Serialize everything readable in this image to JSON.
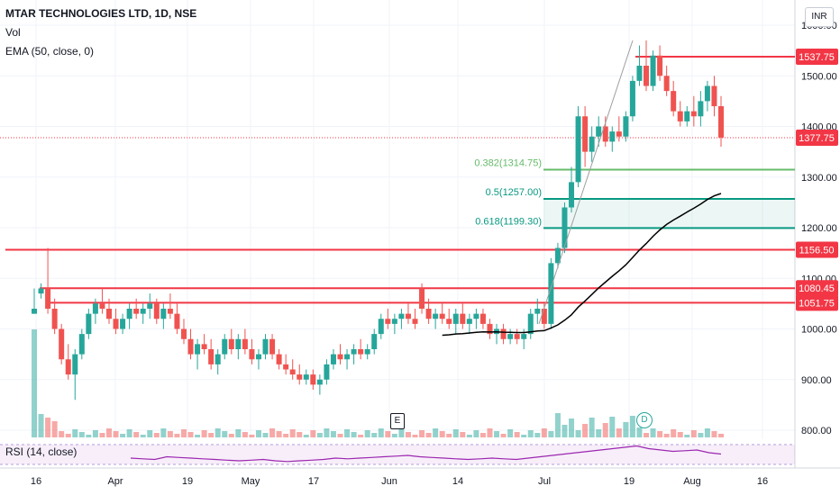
{
  "header": {
    "title": "MTAR TECHNOLOGIES LTD, 1D, NSE",
    "vol_label": "Vol",
    "ema_label": "EMA (50, close, 0)",
    "currency_button": "INR"
  },
  "rsi": {
    "label": "RSI (14, close)",
    "values": [
      62,
      61,
      60,
      64,
      63,
      62,
      61,
      60,
      59,
      58,
      59,
      60,
      58,
      57,
      58,
      59,
      60,
      62,
      61,
      62,
      63,
      64,
      65,
      66,
      64,
      63,
      62,
      61,
      60,
      61,
      62,
      61,
      60,
      62,
      64,
      66,
      68,
      70,
      72,
      74,
      76,
      78,
      80,
      76,
      74,
      72,
      73,
      74,
      70,
      68
    ]
  },
  "events": {
    "earnings_label": "E",
    "dividend_label": "D"
  },
  "colors": {
    "up": "#26a69a",
    "down": "#ef5350",
    "ema": "#000000",
    "level": "#f23645",
    "fib_light": "#66bb6a",
    "fib_dark": "#089981",
    "rsi": "#9c27b0"
  },
  "chart_data": {
    "type": "candlestick",
    "title": "MTAR TECHNOLOGIES LTD, 1D, NSE",
    "y_ticks": [
      800,
      900,
      1000,
      1100,
      1200,
      1300,
      1400,
      1500,
      1600
    ],
    "y_tick_labels": [
      "800.00",
      "900.00",
      "1000.00",
      "1100.00",
      "1200.00",
      "1300.00",
      "1400.00",
      "1500.00",
      "1600.00"
    ],
    "ylim": [
      760,
      1640
    ],
    "x_labels": [
      "16",
      "Apr",
      "19",
      "May",
      "17",
      "Jun",
      "14",
      "Jul",
      "19",
      "Aug",
      "16"
    ],
    "last_price": "1377.75",
    "levels": [
      {
        "value": 1537.75,
        "label": "1537.75"
      },
      {
        "value": 1156.5,
        "label": "1156.50"
      },
      {
        "value": 1080.45,
        "label": "1080.45"
      },
      {
        "value": 1051.75,
        "label": "1051.75"
      }
    ],
    "fib_levels": [
      {
        "ratio": "0.382",
        "value": 1314.75,
        "label": "0.382(1314.75)"
      },
      {
        "ratio": "0.5",
        "value": 1257.0,
        "label": "0.5(1257.00)"
      },
      {
        "ratio": "0.618",
        "value": 1199.3,
        "label": "0.618(1199.30)"
      }
    ],
    "candles": [
      [
        1030,
        1080,
        1030,
        1040
      ],
      [
        1070,
        1090,
        1060,
        1080
      ],
      [
        1080,
        1160,
        1030,
        1040
      ],
      [
        1040,
        1060,
        990,
        1000
      ],
      [
        1000,
        1010,
        930,
        940
      ],
      [
        940,
        970,
        900,
        910
      ],
      [
        910,
        960,
        860,
        950
      ],
      [
        950,
        1000,
        940,
        990
      ],
      [
        990,
        1040,
        980,
        1030
      ],
      [
        1030,
        1060,
        1010,
        1050
      ],
      [
        1050,
        1080,
        1030,
        1040
      ],
      [
        1040,
        1060,
        1010,
        1020
      ],
      [
        1020,
        1040,
        990,
        1000
      ],
      [
        1000,
        1030,
        990,
        1020
      ],
      [
        1020,
        1050,
        1000,
        1040
      ],
      [
        1040,
        1060,
        1020,
        1030
      ],
      [
        1030,
        1050,
        1010,
        1040
      ],
      [
        1040,
        1070,
        1020,
        1050
      ],
      [
        1050,
        1060,
        1010,
        1020
      ],
      [
        1020,
        1050,
        1000,
        1040
      ],
      [
        1040,
        1070,
        1020,
        1030
      ],
      [
        1030,
        1050,
        990,
        1000
      ],
      [
        1000,
        1020,
        970,
        980
      ],
      [
        980,
        1000,
        940,
        950
      ],
      [
        950,
        980,
        920,
        970
      ],
      [
        970,
        990,
        950,
        960
      ],
      [
        960,
        980,
        920,
        930
      ],
      [
        930,
        960,
        910,
        950
      ],
      [
        950,
        990,
        940,
        980
      ],
      [
        980,
        1000,
        950,
        960
      ],
      [
        960,
        990,
        940,
        980
      ],
      [
        980,
        1000,
        950,
        960
      ],
      [
        960,
        980,
        930,
        940
      ],
      [
        940,
        960,
        920,
        950
      ],
      [
        950,
        990,
        940,
        980
      ],
      [
        980,
        990,
        940,
        950
      ],
      [
        950,
        960,
        920,
        930
      ],
      [
        930,
        950,
        910,
        920
      ],
      [
        920,
        940,
        900,
        910
      ],
      [
        910,
        930,
        890,
        900
      ],
      [
        900,
        920,
        890,
        910
      ],
      [
        910,
        920,
        880,
        890
      ],
      [
        890,
        910,
        870,
        900
      ],
      [
        900,
        940,
        890,
        930
      ],
      [
        930,
        960,
        920,
        950
      ],
      [
        950,
        970,
        930,
        940
      ],
      [
        940,
        960,
        920,
        950
      ],
      [
        950,
        970,
        930,
        960
      ],
      [
        960,
        980,
        940,
        950
      ],
      [
        950,
        970,
        940,
        960
      ],
      [
        960,
        1000,
        950,
        990
      ],
      [
        990,
        1030,
        980,
        1020
      ],
      [
        1020,
        1040,
        1000,
        1010
      ],
      [
        1010,
        1030,
        990,
        1020
      ],
      [
        1020,
        1040,
        1000,
        1030
      ],
      [
        1030,
        1050,
        1010,
        1020
      ],
      [
        1020,
        1040,
        1000,
        1010
      ],
      [
        1080,
        1090,
        1030,
        1040
      ],
      [
        1040,
        1060,
        1010,
        1020
      ],
      [
        1020,
        1040,
        1000,
        1030
      ],
      [
        1030,
        1050,
        1010,
        1020
      ],
      [
        1020,
        1040,
        1000,
        1010
      ],
      [
        1010,
        1040,
        990,
        1030
      ],
      [
        1030,
        1050,
        1000,
        1010
      ],
      [
        1010,
        1030,
        990,
        1020
      ],
      [
        1020,
        1040,
        1000,
        1030
      ],
      [
        1030,
        1040,
        1000,
        1010
      ],
      [
        1010,
        1020,
        980,
        990
      ],
      [
        990,
        1010,
        970,
        1000
      ],
      [
        1000,
        1010,
        970,
        980
      ],
      [
        980,
        1000,
        970,
        990
      ],
      [
        990,
        1000,
        970,
        980
      ],
      [
        980,
        1000,
        960,
        990
      ],
      [
        990,
        1040,
        980,
        1030
      ],
      [
        1030,
        1060,
        1010,
        1040
      ],
      [
        1040,
        1050,
        1000,
        1010
      ],
      [
        1010,
        1140,
        1000,
        1130
      ],
      [
        1130,
        1170,
        1120,
        1160
      ],
      [
        1160,
        1250,
        1150,
        1240
      ],
      [
        1240,
        1320,
        1230,
        1290
      ],
      [
        1290,
        1440,
        1280,
        1420
      ],
      [
        1420,
        1440,
        1320,
        1350
      ],
      [
        1350,
        1400,
        1330,
        1380
      ],
      [
        1380,
        1420,
        1360,
        1400
      ],
      [
        1400,
        1420,
        1360,
        1370
      ],
      [
        1370,
        1400,
        1350,
        1390
      ],
      [
        1390,
        1420,
        1370,
        1380
      ],
      [
        1380,
        1430,
        1370,
        1420
      ],
      [
        1420,
        1500,
        1410,
        1490
      ],
      [
        1490,
        1560,
        1480,
        1520
      ],
      [
        1520,
        1570,
        1470,
        1480
      ],
      [
        1480,
        1550,
        1470,
        1540
      ],
      [
        1540,
        1560,
        1490,
        1500
      ],
      [
        1500,
        1520,
        1460,
        1470
      ],
      [
        1470,
        1490,
        1420,
        1430
      ],
      [
        1430,
        1450,
        1400,
        1410
      ],
      [
        1410,
        1440,
        1400,
        1430
      ],
      [
        1430,
        1460,
        1400,
        1420
      ],
      [
        1420,
        1470,
        1400,
        1450
      ],
      [
        1450,
        1490,
        1430,
        1480
      ],
      [
        1480,
        1500,
        1420,
        1440
      ],
      [
        1440,
        1460,
        1360,
        1378
      ]
    ]
  }
}
